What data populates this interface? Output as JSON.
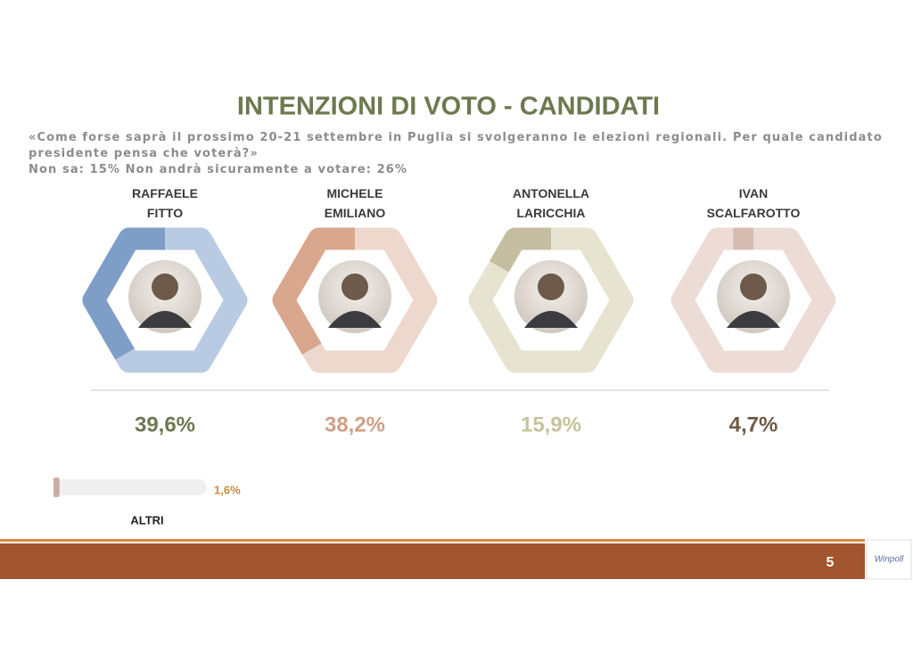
{
  "chart_data": {
    "type": "hexagon-gauge",
    "title": "INTENZIONI DI VOTO - CANDIDATI",
    "subtitle": "«Come forse saprà il prossimo 20-21 settembre in Puglia si svolgeranno le elezioni regionali. Per quale candidato presidente pensa che voterà?»",
    "note": "Non sa: 15%   Non andrà sicuramente a votare: 26%",
    "series": [
      {
        "name": "RAFFAELE\nFITTO",
        "color": "#7e9ec8",
        "track_color": "#b9cbe2",
        "label_color": "#6b7a4f",
        "value": 39.6,
        "value_label": "39,6%"
      },
      {
        "name": "MICHELE\nEMILIANO",
        "color": "#d8a78e",
        "track_color": "#eed8cd",
        "label_color": "#d19f86",
        "value": 38.2,
        "value_label": "38,2%"
      },
      {
        "name": "ANTONELLA\nLARICCHIA",
        "color": "#c4bd9f",
        "track_color": "#e6e4d0",
        "label_color": "#c7c49c",
        "value": 15.9,
        "value_label": "15,9%"
      },
      {
        "name": "IVAN\nSCALFAROTTO",
        "color": "#d6bcb0",
        "track_color": "#eddcd6",
        "label_color": "#6e5a45",
        "value": 4.7,
        "value_label": "4,7%"
      }
    ],
    "others": {
      "name": "ALTRI",
      "color": "#c9ada3",
      "track_color": "#efefef",
      "label_color": "#c88a3a",
      "value": 1.6,
      "value_label": "1,6%"
    },
    "page_number": "5",
    "logo": "Winpoll"
  }
}
